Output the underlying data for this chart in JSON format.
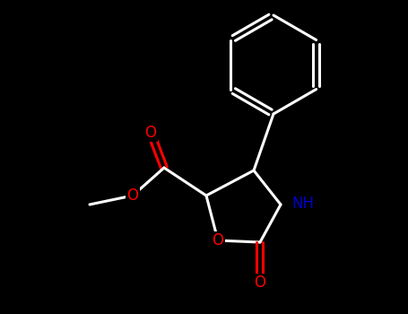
{
  "bg_color": "#000000",
  "line_color": "#ffffff",
  "o_color": "#ff0000",
  "n_color": "#0000cd",
  "lw": 2.2,
  "figsize": [
    4.55,
    3.5
  ],
  "dpi": 100,
  "xlim": [
    0,
    9.1
  ],
  "ylim": [
    0,
    7.0
  ]
}
